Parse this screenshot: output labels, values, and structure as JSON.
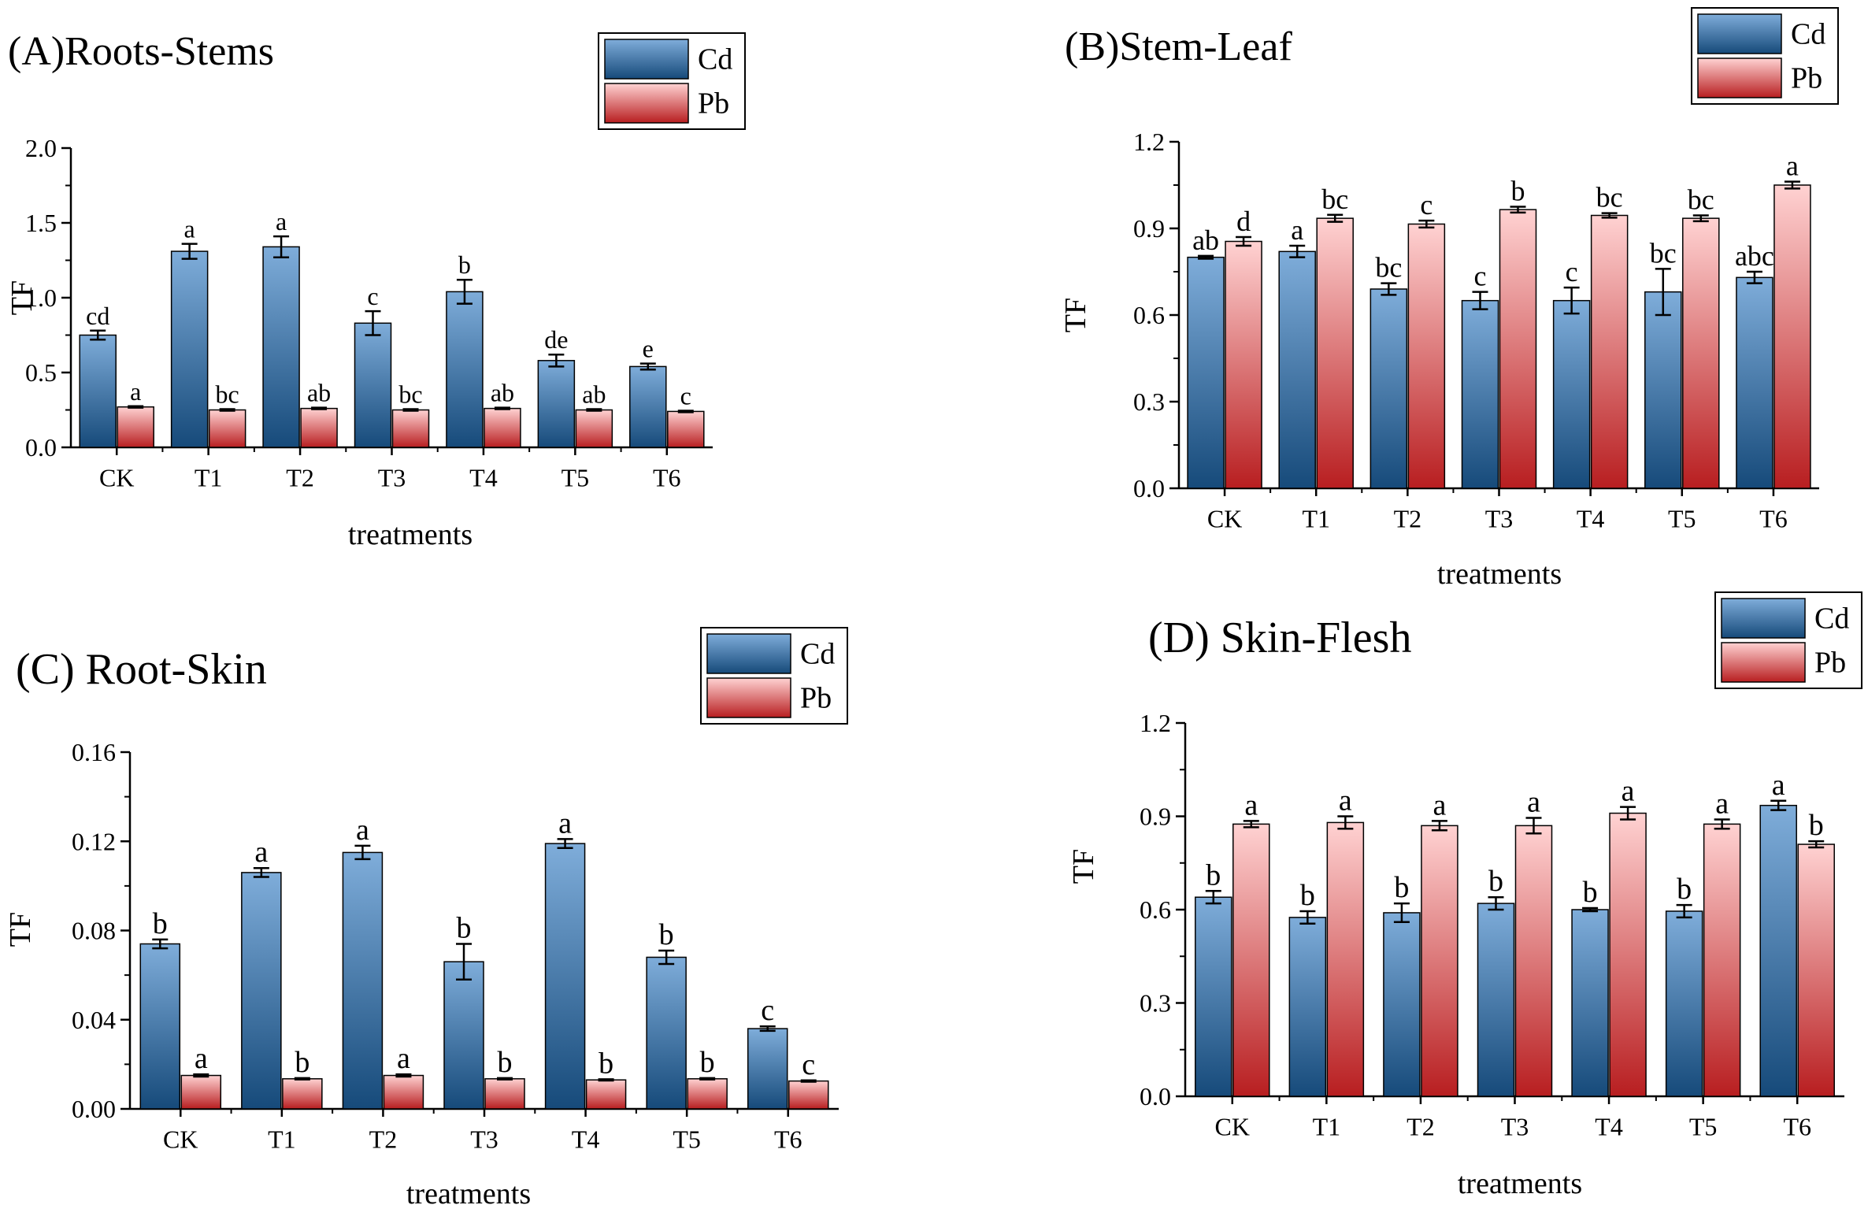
{
  "figure": {
    "x_tick_labels": [
      "CK",
      "T1",
      "T2",
      "T3",
      "T4",
      "T5",
      "T6"
    ]
  },
  "colors": {
    "cd_light": "#7fadda",
    "cd_dark": "#164a7a",
    "pb_light": "#ffd2d2",
    "pb_dark": "#b81e20",
    "axis": "#000000"
  },
  "chart_data": [
    {
      "type": "bar",
      "panel": "A",
      "title": "(A)Roots-Stems",
      "xlabel": "treatments",
      "ylabel": "TF",
      "categories": [
        "CK",
        "T1",
        "T2",
        "T3",
        "T4",
        "T5",
        "T6"
      ],
      "ylim": [
        0,
        2.0
      ],
      "yticks": [
        "0.0",
        "0.5",
        "1.0",
        "1.5",
        "2.0"
      ],
      "legend": "top-right",
      "series": [
        {
          "name": "Cd",
          "values": [
            0.75,
            1.31,
            1.34,
            0.83,
            1.04,
            0.58,
            0.54
          ],
          "errors": [
            0.03,
            0.05,
            0.07,
            0.08,
            0.08,
            0.04,
            0.02
          ],
          "labels": [
            "cd",
            "a",
            "a",
            "c",
            "b",
            "de",
            "e"
          ]
        },
        {
          "name": "Pb",
          "values": [
            0.27,
            0.25,
            0.26,
            0.25,
            0.26,
            0.25,
            0.24
          ],
          "errors": [
            0.005,
            0.005,
            0.005,
            0.005,
            0.005,
            0.005,
            0.005
          ],
          "labels": [
            "a",
            "bc",
            "ab",
            "bc",
            "ab",
            "ab",
            "c"
          ]
        }
      ]
    },
    {
      "type": "bar",
      "panel": "B",
      "title": "(B)Stem-Leaf",
      "xlabel": "treatments",
      "ylabel": "TF",
      "categories": [
        "CK",
        "T1",
        "T2",
        "T3",
        "T4",
        "T5",
        "T6"
      ],
      "ylim": [
        0,
        1.2
      ],
      "yticks": [
        "0.0",
        "0.3",
        "0.6",
        "0.9",
        "1.2"
      ],
      "legend": "top-right",
      "series": [
        {
          "name": "Cd",
          "values": [
            0.8,
            0.82,
            0.69,
            0.65,
            0.65,
            0.68,
            0.73
          ],
          "errors": [
            0.005,
            0.02,
            0.02,
            0.03,
            0.045,
            0.08,
            0.02
          ],
          "labels": [
            "ab",
            "a",
            "bc",
            "c",
            "c",
            "bc",
            "abc"
          ]
        },
        {
          "name": "Pb",
          "values": [
            0.855,
            0.935,
            0.915,
            0.965,
            0.945,
            0.935,
            1.05
          ],
          "errors": [
            0.015,
            0.012,
            0.012,
            0.01,
            0.008,
            0.01,
            0.012
          ],
          "labels": [
            "d",
            "bc",
            "c",
            "b",
            "bc",
            "bc",
            "a"
          ]
        }
      ]
    },
    {
      "type": "bar",
      "panel": "C",
      "title": "(C) Root-Skin",
      "xlabel": "treatments",
      "ylabel": "TF",
      "categories": [
        "CK",
        "T1",
        "T2",
        "T3",
        "T4",
        "T5",
        "T6"
      ],
      "ylim": [
        0,
        0.16
      ],
      "yticks": [
        "0.00",
        "0.04",
        "0.08",
        "0.12",
        "0.16"
      ],
      "legend": "top-right",
      "series": [
        {
          "name": "Cd",
          "values": [
            0.074,
            0.106,
            0.115,
            0.066,
            0.119,
            0.068,
            0.036
          ],
          "errors": [
            0.002,
            0.002,
            0.003,
            0.008,
            0.002,
            0.003,
            0.001
          ],
          "labels": [
            "b",
            "a",
            "a",
            "b",
            "a",
            "b",
            "c"
          ]
        },
        {
          "name": "Pb",
          "values": [
            0.015,
            0.0135,
            0.015,
            0.0135,
            0.013,
            0.0135,
            0.0125
          ],
          "errors": [
            0.0005,
            0.0003,
            0.0005,
            0.0003,
            0.0003,
            0.0003,
            0.0003
          ],
          "labels": [
            "a",
            "b",
            "a",
            "b",
            "b",
            "b",
            "c"
          ]
        }
      ]
    },
    {
      "type": "bar",
      "panel": "D",
      "title": "(D) Skin-Flesh",
      "xlabel": "treatments",
      "ylabel": "TF",
      "categories": [
        "CK",
        "T1",
        "T2",
        "T3",
        "T4",
        "T5",
        "T6"
      ],
      "ylim": [
        0,
        1.2
      ],
      "yticks": [
        "0.0",
        "0.3",
        "0.6",
        "0.9",
        "1.2"
      ],
      "legend": "top-right",
      "series": [
        {
          "name": "Cd",
          "values": [
            0.64,
            0.575,
            0.59,
            0.62,
            0.6,
            0.595,
            0.935
          ],
          "errors": [
            0.02,
            0.02,
            0.03,
            0.02,
            0.005,
            0.02,
            0.015
          ],
          "labels": [
            "b",
            "b",
            "b",
            "b",
            "b",
            "b",
            "a"
          ]
        },
        {
          "name": "Pb",
          "values": [
            0.875,
            0.88,
            0.87,
            0.87,
            0.91,
            0.875,
            0.81
          ],
          "errors": [
            0.01,
            0.02,
            0.015,
            0.025,
            0.02,
            0.015,
            0.01
          ],
          "labels": [
            "a",
            "a",
            "a",
            "a",
            "a",
            "a",
            "b"
          ]
        }
      ]
    }
  ]
}
